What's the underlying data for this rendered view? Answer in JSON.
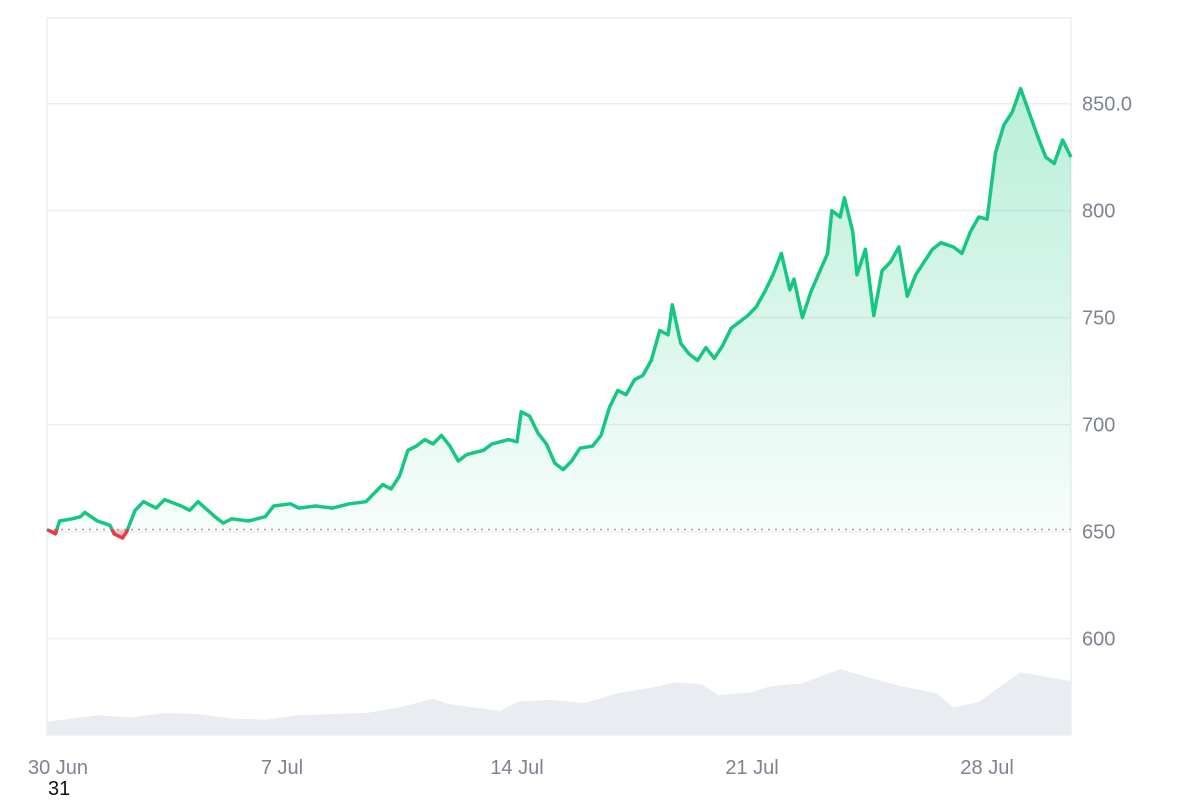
{
  "chart_data": {
    "type": "area",
    "baseline": 651,
    "ylim": [
      555,
      890
    ],
    "x_range": [
      "2025-06-30",
      "2025-07-30T12:00"
    ],
    "grid": true,
    "y_ticks": [
      {
        "value": 850,
        "label": "850.0"
      },
      {
        "value": 800,
        "label": "800"
      },
      {
        "value": 750,
        "label": "750"
      },
      {
        "value": 700,
        "label": "700"
      },
      {
        "value": 650,
        "label": "650"
      },
      {
        "value": 600,
        "label": "600"
      }
    ],
    "x_ticks": [
      {
        "date": "2025-06-30",
        "label": "30 Jun"
      },
      {
        "date": "2025-07-07",
        "label": "7 Jul"
      },
      {
        "date": "2025-07-14",
        "label": "14 Jul"
      },
      {
        "date": "2025-07-21",
        "label": "21 Jul"
      },
      {
        "date": "2025-07-28",
        "label": "28 Jul"
      }
    ],
    "colors": {
      "up": "#16c784",
      "down": "#ea3943",
      "volume": "#e9ecf0",
      "grid": "#eceef1",
      "baseline": "#9aa1ab"
    },
    "series": [
      {
        "values": [
          [
            "2025-06-30T00:00",
            651
          ],
          [
            "2025-06-30T06:00",
            649
          ],
          [
            "2025-06-30T09:00",
            655
          ],
          [
            "2025-06-30T18:00",
            656
          ],
          [
            "2025-07-01T00:00",
            657
          ],
          [
            "2025-07-01T03:00",
            659
          ],
          [
            "2025-07-01T12:00",
            655
          ],
          [
            "2025-07-01T21:00",
            653
          ],
          [
            "2025-07-02T00:00",
            649
          ],
          [
            "2025-07-02T06:00",
            647
          ],
          [
            "2025-07-02T09:00",
            650
          ],
          [
            "2025-07-02T15:00",
            660
          ],
          [
            "2025-07-02T21:00",
            664
          ],
          [
            "2025-07-03T06:00",
            661
          ],
          [
            "2025-07-03T12:00",
            665
          ],
          [
            "2025-07-04T00:00",
            662
          ],
          [
            "2025-07-04T06:00",
            660
          ],
          [
            "2025-07-04T12:00",
            664
          ],
          [
            "2025-07-05T00:00",
            657
          ],
          [
            "2025-07-05T06:00",
            654
          ],
          [
            "2025-07-05T12:00",
            656
          ],
          [
            "2025-07-06T00:00",
            655
          ],
          [
            "2025-07-06T12:00",
            657
          ],
          [
            "2025-07-06T18:00",
            662
          ],
          [
            "2025-07-07T06:00",
            663
          ],
          [
            "2025-07-07T12:00",
            661
          ],
          [
            "2025-07-08T00:00",
            662
          ],
          [
            "2025-07-08T12:00",
            661
          ],
          [
            "2025-07-09T00:00",
            663
          ],
          [
            "2025-07-09T12:00",
            664
          ],
          [
            "2025-07-09T18:00",
            668
          ],
          [
            "2025-07-10T00:00",
            672
          ],
          [
            "2025-07-10T06:00",
            670
          ],
          [
            "2025-07-10T12:00",
            676
          ],
          [
            "2025-07-10T18:00",
            688
          ],
          [
            "2025-07-11T00:00",
            690
          ],
          [
            "2025-07-11T06:00",
            693
          ],
          [
            "2025-07-11T12:00",
            691
          ],
          [
            "2025-07-11T18:00",
            695
          ],
          [
            "2025-07-12T00:00",
            690
          ],
          [
            "2025-07-12T06:00",
            683
          ],
          [
            "2025-07-12T12:00",
            686
          ],
          [
            "2025-07-13T00:00",
            688
          ],
          [
            "2025-07-13T06:00",
            691
          ],
          [
            "2025-07-13T12:00",
            692
          ],
          [
            "2025-07-13T18:00",
            693
          ],
          [
            "2025-07-14T00:00",
            692
          ],
          [
            "2025-07-14T03:00",
            706
          ],
          [
            "2025-07-14T09:00",
            704
          ],
          [
            "2025-07-14T15:00",
            696
          ],
          [
            "2025-07-14T21:00",
            691
          ],
          [
            "2025-07-15T03:00",
            682
          ],
          [
            "2025-07-15T09:00",
            679
          ],
          [
            "2025-07-15T15:00",
            683
          ],
          [
            "2025-07-15T21:00",
            689
          ],
          [
            "2025-07-16T06:00",
            690
          ],
          [
            "2025-07-16T12:00",
            695
          ],
          [
            "2025-07-16T18:00",
            708
          ],
          [
            "2025-07-17T00:00",
            716
          ],
          [
            "2025-07-17T06:00",
            714
          ],
          [
            "2025-07-17T12:00",
            721
          ],
          [
            "2025-07-17T18:00",
            723
          ],
          [
            "2025-07-18T00:00",
            730
          ],
          [
            "2025-07-18T06:00",
            744
          ],
          [
            "2025-07-18T12:00",
            742
          ],
          [
            "2025-07-18T15:00",
            756
          ],
          [
            "2025-07-18T21:00",
            738
          ],
          [
            "2025-07-19T03:00",
            733
          ],
          [
            "2025-07-19T09:00",
            730
          ],
          [
            "2025-07-19T15:00",
            736
          ],
          [
            "2025-07-19T21:00",
            731
          ],
          [
            "2025-07-20T03:00",
            737
          ],
          [
            "2025-07-20T09:00",
            745
          ],
          [
            "2025-07-20T15:00",
            748
          ],
          [
            "2025-07-20T21:00",
            751
          ],
          [
            "2025-07-21T03:00",
            755
          ],
          [
            "2025-07-21T09:00",
            762
          ],
          [
            "2025-07-21T15:00",
            770
          ],
          [
            "2025-07-21T21:00",
            780
          ],
          [
            "2025-07-22T03:00",
            763
          ],
          [
            "2025-07-22T06:00",
            768
          ],
          [
            "2025-07-22T12:00",
            750
          ],
          [
            "2025-07-22T18:00",
            762
          ],
          [
            "2025-07-23T00:00",
            771
          ],
          [
            "2025-07-23T06:00",
            780
          ],
          [
            "2025-07-23T09:00",
            800
          ],
          [
            "2025-07-23T15:00",
            797
          ],
          [
            "2025-07-23T18:00",
            806
          ],
          [
            "2025-07-24T00:00",
            790
          ],
          [
            "2025-07-24T03:00",
            770
          ],
          [
            "2025-07-24T09:00",
            782
          ],
          [
            "2025-07-24T15:00",
            751
          ],
          [
            "2025-07-24T21:00",
            772
          ],
          [
            "2025-07-25T03:00",
            776
          ],
          [
            "2025-07-25T09:00",
            783
          ],
          [
            "2025-07-25T15:00",
            760
          ],
          [
            "2025-07-25T21:00",
            770
          ],
          [
            "2025-07-26T03:00",
            776
          ],
          [
            "2025-07-26T09:00",
            782
          ],
          [
            "2025-07-26T15:00",
            785
          ],
          [
            "2025-07-27T00:00",
            783
          ],
          [
            "2025-07-27T06:00",
            780
          ],
          [
            "2025-07-27T12:00",
            790
          ],
          [
            "2025-07-27T18:00",
            797
          ],
          [
            "2025-07-28T00:00",
            796
          ],
          [
            "2025-07-28T06:00",
            827
          ],
          [
            "2025-07-28T12:00",
            840
          ],
          [
            "2025-07-28T18:00",
            846
          ],
          [
            "2025-07-29T00:00",
            857
          ],
          [
            "2025-07-29T06:00",
            846
          ],
          [
            "2025-07-29T12:00",
            835
          ],
          [
            "2025-07-29T18:00",
            825
          ],
          [
            "2025-07-30T00:00",
            822
          ],
          [
            "2025-07-30T06:00",
            833
          ],
          [
            "2025-07-30T12:00",
            825
          ]
        ]
      }
    ],
    "volume_series": [
      [
        "2025-06-30T00:00",
        0.12
      ],
      [
        "2025-07-01T12:00",
        0.18
      ],
      [
        "2025-07-02T12:00",
        0.16
      ],
      [
        "2025-07-03T12:00",
        0.2
      ],
      [
        "2025-07-04T12:00",
        0.19
      ],
      [
        "2025-07-05T12:00",
        0.15
      ],
      [
        "2025-07-06T12:00",
        0.14
      ],
      [
        "2025-07-07T12:00",
        0.18
      ],
      [
        "2025-07-08T12:00",
        0.19
      ],
      [
        "2025-07-09T12:00",
        0.2
      ],
      [
        "2025-07-10T12:00",
        0.25
      ],
      [
        "2025-07-11T12:00",
        0.33
      ],
      [
        "2025-07-12T00:00",
        0.28
      ],
      [
        "2025-07-13T12:00",
        0.22
      ],
      [
        "2025-07-14T00:00",
        0.3
      ],
      [
        "2025-07-15T00:00",
        0.32
      ],
      [
        "2025-07-16T00:00",
        0.29
      ],
      [
        "2025-07-17T00:00",
        0.38
      ],
      [
        "2025-07-18T00:00",
        0.43
      ],
      [
        "2025-07-18T18:00",
        0.48
      ],
      [
        "2025-07-19T12:00",
        0.46
      ],
      [
        "2025-07-20T00:00",
        0.36
      ],
      [
        "2025-07-21T00:00",
        0.39
      ],
      [
        "2025-07-21T12:00",
        0.44
      ],
      [
        "2025-07-22T12:00",
        0.47
      ],
      [
        "2025-07-23T00:00",
        0.53
      ],
      [
        "2025-07-23T15:00",
        0.6
      ],
      [
        "2025-07-24T12:00",
        0.52
      ],
      [
        "2025-07-25T12:00",
        0.44
      ],
      [
        "2025-07-26T12:00",
        0.38
      ],
      [
        "2025-07-27T00:00",
        0.25
      ],
      [
        "2025-07-27T18:00",
        0.3
      ],
      [
        "2025-07-28T06:00",
        0.41
      ],
      [
        "2025-07-29T00:00",
        0.57
      ],
      [
        "2025-07-30T12:00",
        0.49
      ]
    ]
  },
  "extra_label": "31"
}
